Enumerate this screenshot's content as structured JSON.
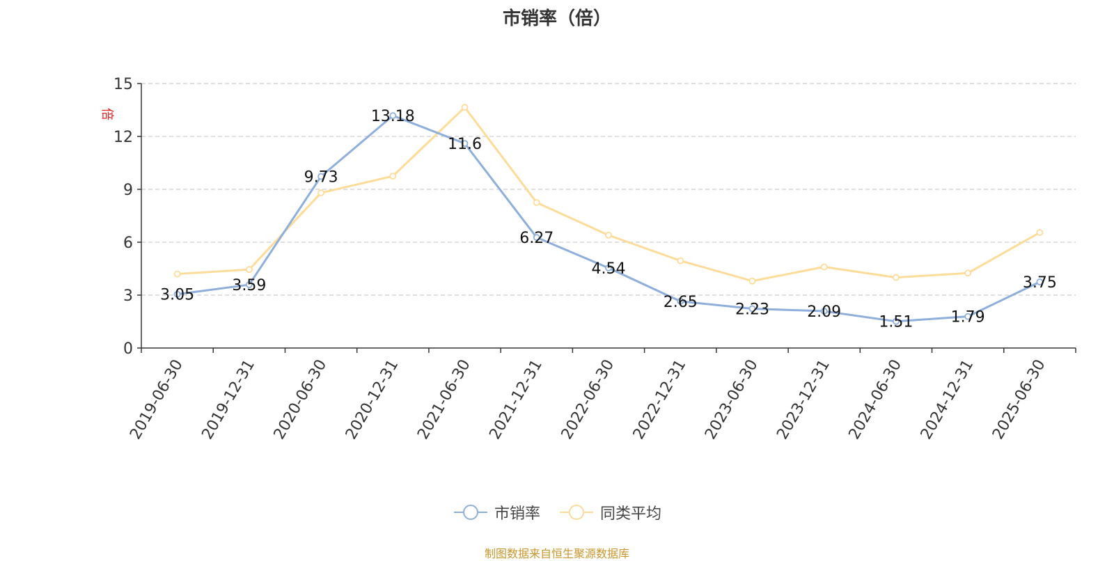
{
  "chart_data": {
    "type": "line",
    "title": "市销率（倍）",
    "ylabel": "倍",
    "ylim": [
      0,
      15
    ],
    "yticks": [
      0,
      3,
      6,
      9,
      12,
      15
    ],
    "grid": true,
    "categories": [
      "2019-06-30",
      "2019-12-31",
      "2020-06-30",
      "2020-12-31",
      "2021-06-30",
      "2021-12-31",
      "2022-06-30",
      "2022-12-31",
      "2023-06-30",
      "2023-12-31",
      "2024-06-30",
      "2024-12-31",
      "2025-06-30"
    ],
    "series": [
      {
        "name": "市销率",
        "color": "#8eaedb",
        "values": [
          3.05,
          3.59,
          9.73,
          13.18,
          11.6,
          6.27,
          4.54,
          2.65,
          2.23,
          2.09,
          1.51,
          1.79,
          3.75
        ],
        "labels": [
          "3.05",
          "3.59",
          "9.73",
          "13.18",
          "11.6",
          "6.27",
          "4.54",
          "2.65",
          "2.23",
          "2.09",
          "1.51",
          "1.79",
          "3.75"
        ]
      },
      {
        "name": "同类平均",
        "color": "#fddc9a",
        "values": [
          4.2,
          4.45,
          8.8,
          9.75,
          13.65,
          8.25,
          6.4,
          4.95,
          3.8,
          4.6,
          4.0,
          4.25,
          6.55
        ]
      }
    ],
    "legend_position": "bottom"
  },
  "source": "制图数据来自恒生聚源数据库"
}
